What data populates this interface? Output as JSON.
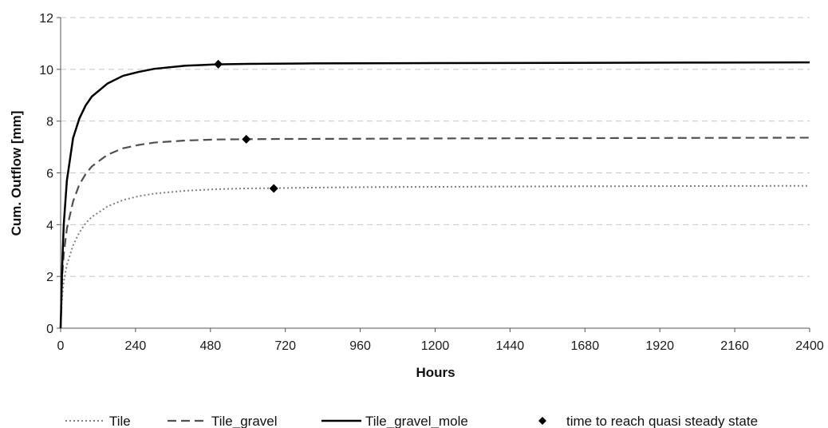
{
  "chart_data": {
    "type": "line",
    "title": "",
    "xlabel": "Hours",
    "ylabel": "Cum. Outflow [mm]",
    "xlim": [
      0,
      2400
    ],
    "ylim": [
      0,
      12
    ],
    "xticks": [
      "0",
      "240",
      "480",
      "720",
      "960",
      "1200",
      "1440",
      "1680",
      "1920",
      "2160",
      "2400"
    ],
    "yticks": [
      "0",
      "2",
      "4",
      "6",
      "8",
      "10",
      "12"
    ],
    "grid": "horizontal dashed",
    "legend_position": "bottom",
    "series": [
      {
        "name": "Tile",
        "style": "dotted",
        "color": "#808080",
        "x": [
          0,
          5,
          10,
          20,
          40,
          60,
          80,
          100,
          150,
          200,
          250,
          300,
          400,
          500,
          600,
          680,
          800,
          1000,
          1200,
          1600,
          2000,
          2400
        ],
        "y": [
          0,
          1.25,
          1.8,
          2.45,
          3.2,
          3.7,
          4.05,
          4.3,
          4.7,
          4.95,
          5.1,
          5.2,
          5.31,
          5.37,
          5.4,
          5.41,
          5.43,
          5.45,
          5.46,
          5.48,
          5.49,
          5.5
        ]
      },
      {
        "name": "Tile_gravel",
        "style": "dashed",
        "color": "#505050",
        "x": [
          0,
          5,
          10,
          20,
          40,
          60,
          80,
          100,
          150,
          200,
          250,
          300,
          400,
          500,
          590,
          700,
          1000,
          1200,
          1600,
          2000,
          2400
        ],
        "y": [
          0,
          2.0,
          2.85,
          3.85,
          4.9,
          5.55,
          5.95,
          6.25,
          6.7,
          6.95,
          7.08,
          7.17,
          7.25,
          7.29,
          7.3,
          7.31,
          7.32,
          7.33,
          7.34,
          7.35,
          7.36
        ]
      },
      {
        "name": "Tile_gravel_mole",
        "style": "solid",
        "color": "#000000",
        "x": [
          0,
          5,
          10,
          20,
          40,
          60,
          80,
          100,
          150,
          200,
          250,
          300,
          400,
          500,
          600,
          800,
          1200,
          1600,
          2000,
          2400
        ],
        "y": [
          0,
          2.4,
          4.0,
          5.7,
          7.35,
          8.1,
          8.6,
          8.95,
          9.45,
          9.75,
          9.9,
          10.02,
          10.14,
          10.19,
          10.21,
          10.23,
          10.24,
          10.25,
          10.26,
          10.27
        ]
      }
    ],
    "markers": {
      "name": "time to reach quasi steady state",
      "symbol": "diamond",
      "color": "#000000",
      "points": [
        {
          "x": 505,
          "y": 10.2
        },
        {
          "x": 595,
          "y": 7.3
        },
        {
          "x": 683,
          "y": 5.4
        }
      ]
    }
  }
}
